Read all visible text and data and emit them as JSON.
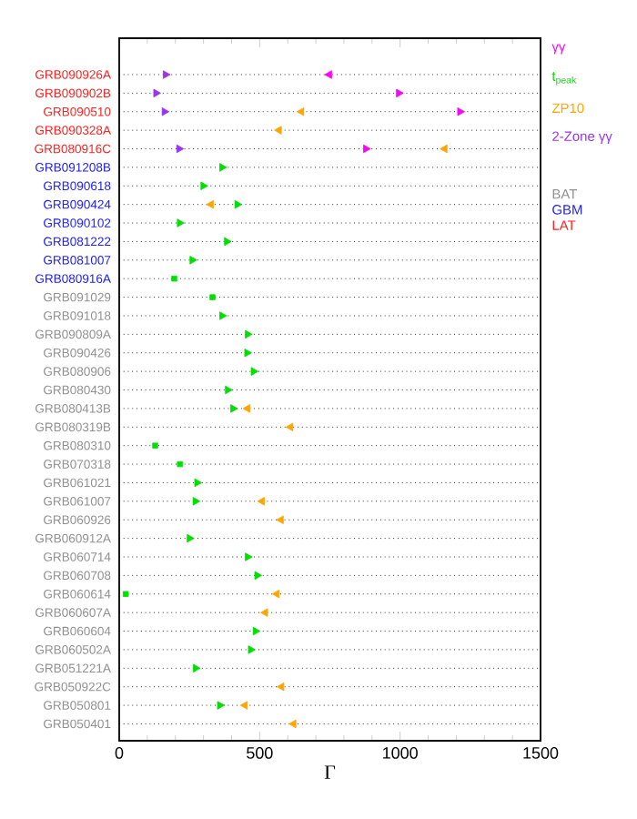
{
  "chart_data": {
    "type": "scatter",
    "orientation": "horizontal",
    "xlabel": "Γ",
    "categories": [
      "GRB090926A",
      "GRB090902B",
      "GRB090510",
      "GRB090328A",
      "GRB080916C",
      "GRB091208B",
      "GRB090618",
      "GRB090424",
      "GRB090102",
      "GRB081222",
      "GRB081007",
      "GRB080916A",
      "GRB091029",
      "GRB091018",
      "GRB090809A",
      "GRB090426",
      "GRB080906",
      "GRB080430",
      "GRB080413B",
      "GRB080319B",
      "GRB080310",
      "GRB070318",
      "GRB061021",
      "GRB061007",
      "GRB060926",
      "GRB060912A",
      "GRB060714",
      "GRB060708",
      "GRB060614",
      "GRB060607A",
      "GRB060604",
      "GRB060502A",
      "GRB051221A",
      "GRB050922C",
      "GRB050801",
      "GRB050401"
    ],
    "colors": [
      "#ff2020",
      "#ff2020",
      "#ff2020",
      "#ff2020",
      "#ff2020",
      "#2020ff",
      "#2020ff",
      "#2020ff",
      "#2020ff",
      "#2020ff",
      "#2020ff",
      "#2020ff",
      "#909090",
      "#909090",
      "#909090",
      "#909090",
      "#909090",
      "#909090",
      "#909090",
      "#909090",
      "#909090",
      "#909090",
      "#909090",
      "#909090",
      "#909090",
      "#909090",
      "#909090",
      "#909090",
      "#909090",
      "#909090",
      "#909090",
      "#909090",
      "#909090",
      "#909090",
      "#909090",
      "#909090"
    ],
    "series": [
      {
        "name": "γγ",
        "color": "#ff00ff",
        "marker": "triangle right",
        "values": [
          null,
          995,
          1213,
          null,
          878,
          null,
          null,
          null,
          null,
          null,
          null,
          null,
          null,
          null,
          null,
          null,
          null,
          null,
          null,
          null,
          null,
          null,
          null,
          null,
          null,
          null,
          null,
          null,
          null,
          null,
          null,
          null,
          null,
          null,
          null,
          null
        ]
      },
      {
        "color": "#ff00ff",
        "marker": "triangle left",
        "values": [
          748,
          null,
          null,
          null,
          null,
          null,
          null,
          null,
          null,
          null,
          null,
          null,
          null,
          null,
          null,
          null,
          null,
          null,
          null,
          null,
          null,
          null,
          null,
          null,
          null,
          null,
          null,
          null,
          null,
          null,
          null,
          null,
          null,
          null,
          null,
          null
        ]
      },
      {
        "name": "t$_{peak}$",
        "color": "#00e000",
        "marker": "triangle right",
        "values": [
          null,
          null,
          null,
          null,
          null,
          366,
          299,
          420,
          215,
          383,
          260,
          null,
          null,
          366,
          457,
          455,
          478,
          386,
          405,
          null,
          null,
          null,
          277,
          271,
          null,
          250,
          457,
          491,
          null,
          null,
          485,
          468,
          272,
          null,
          358,
          null
        ]
      },
      {
        "color": "#00e000",
        "marker": "square",
        "values": [
          null,
          null,
          null,
          null,
          null,
          null,
          null,
          null,
          null,
          null,
          null,
          196,
          332,
          null,
          null,
          null,
          null,
          null,
          null,
          null,
          128,
          216,
          null,
          null,
          null,
          null,
          null,
          null,
          23,
          null,
          null,
          null,
          null,
          null,
          null,
          null
        ]
      },
      {
        "name": "ZP10",
        "color": "#ffa500",
        "marker": "triangle left",
        "values": [
          null,
          null,
          649,
          569,
          1159,
          null,
          null,
          327,
          null,
          null,
          null,
          null,
          null,
          null,
          null,
          null,
          null,
          null,
          457,
          610,
          null,
          null,
          null,
          509,
          576,
          null,
          null,
          null,
          561,
          520,
          null,
          null,
          null,
          578,
          448,
          621
        ]
      },
      {
        "name": "2-Zone γγ",
        "color": "#9933ee",
        "marker": "triangle right",
        "values": [
          165,
          131,
          161,
          null,
          213,
          null,
          null,
          null,
          null,
          null,
          null,
          null,
          null,
          null,
          null,
          null,
          null,
          null,
          null,
          null,
          null,
          null,
          null,
          null,
          null,
          null,
          null,
          null,
          null,
          null,
          null,
          null,
          null,
          null,
          null,
          null
        ]
      },
      {
        "name": "BAT",
        "color": "#909090",
        "marker": "none",
        "values": [
          null,
          null,
          null,
          null,
          null,
          null,
          null,
          null,
          null,
          null,
          null,
          null,
          null,
          null,
          null,
          null,
          null,
          null,
          null,
          null,
          null,
          null,
          null,
          null,
          null,
          null,
          null,
          null,
          null,
          null,
          null,
          null,
          null,
          null,
          null,
          null
        ]
      },
      {
        "name": "GBM",
        "color": "#2020ff",
        "marker": "none",
        "values": [
          null,
          null,
          null,
          null,
          null,
          null,
          null,
          null,
          null,
          null,
          null,
          null,
          null,
          null,
          null,
          null,
          null,
          null,
          null,
          null,
          null,
          null,
          null,
          null,
          null,
          null,
          null,
          null,
          null,
          null,
          null,
          null,
          null,
          null,
          null,
          null
        ]
      },
      {
        "name": "LAT",
        "color": "#ff2020",
        "marker": "none",
        "values": [
          null,
          null,
          null,
          null,
          null,
          null,
          null,
          null,
          null,
          null,
          null,
          null,
          null,
          null,
          null,
          null,
          null,
          null,
          null,
          null,
          null,
          null,
          null,
          null,
          null,
          null,
          null,
          null,
          null,
          null,
          null,
          null,
          null,
          null,
          null,
          null
        ]
      }
    ],
    "xlim": [
      0,
      1500
    ],
    "xticks": [
      0,
      {
        "value": 100,
        "label": null
      },
      {
        "value": 200,
        "label": null
      },
      {
        "value": 300,
        "label": null
      },
      {
        "value": 400,
        "label": null
      },
      500,
      {
        "value": 600,
        "label": null
      },
      {
        "value": 700,
        "label": null
      },
      {
        "value": 800,
        "label": null
      },
      {
        "value": 900,
        "label": null
      },
      1000,
      {
        "value": 1100,
        "label": null
      },
      {
        "value": 1200,
        "label": null
      },
      {
        "value": 1300,
        "label": null
      },
      {
        "value": 1400,
        "label": null
      },
      1500
    ],
    "grid": "y",
    "line_style": "dotted",
    "legend": "right"
  }
}
